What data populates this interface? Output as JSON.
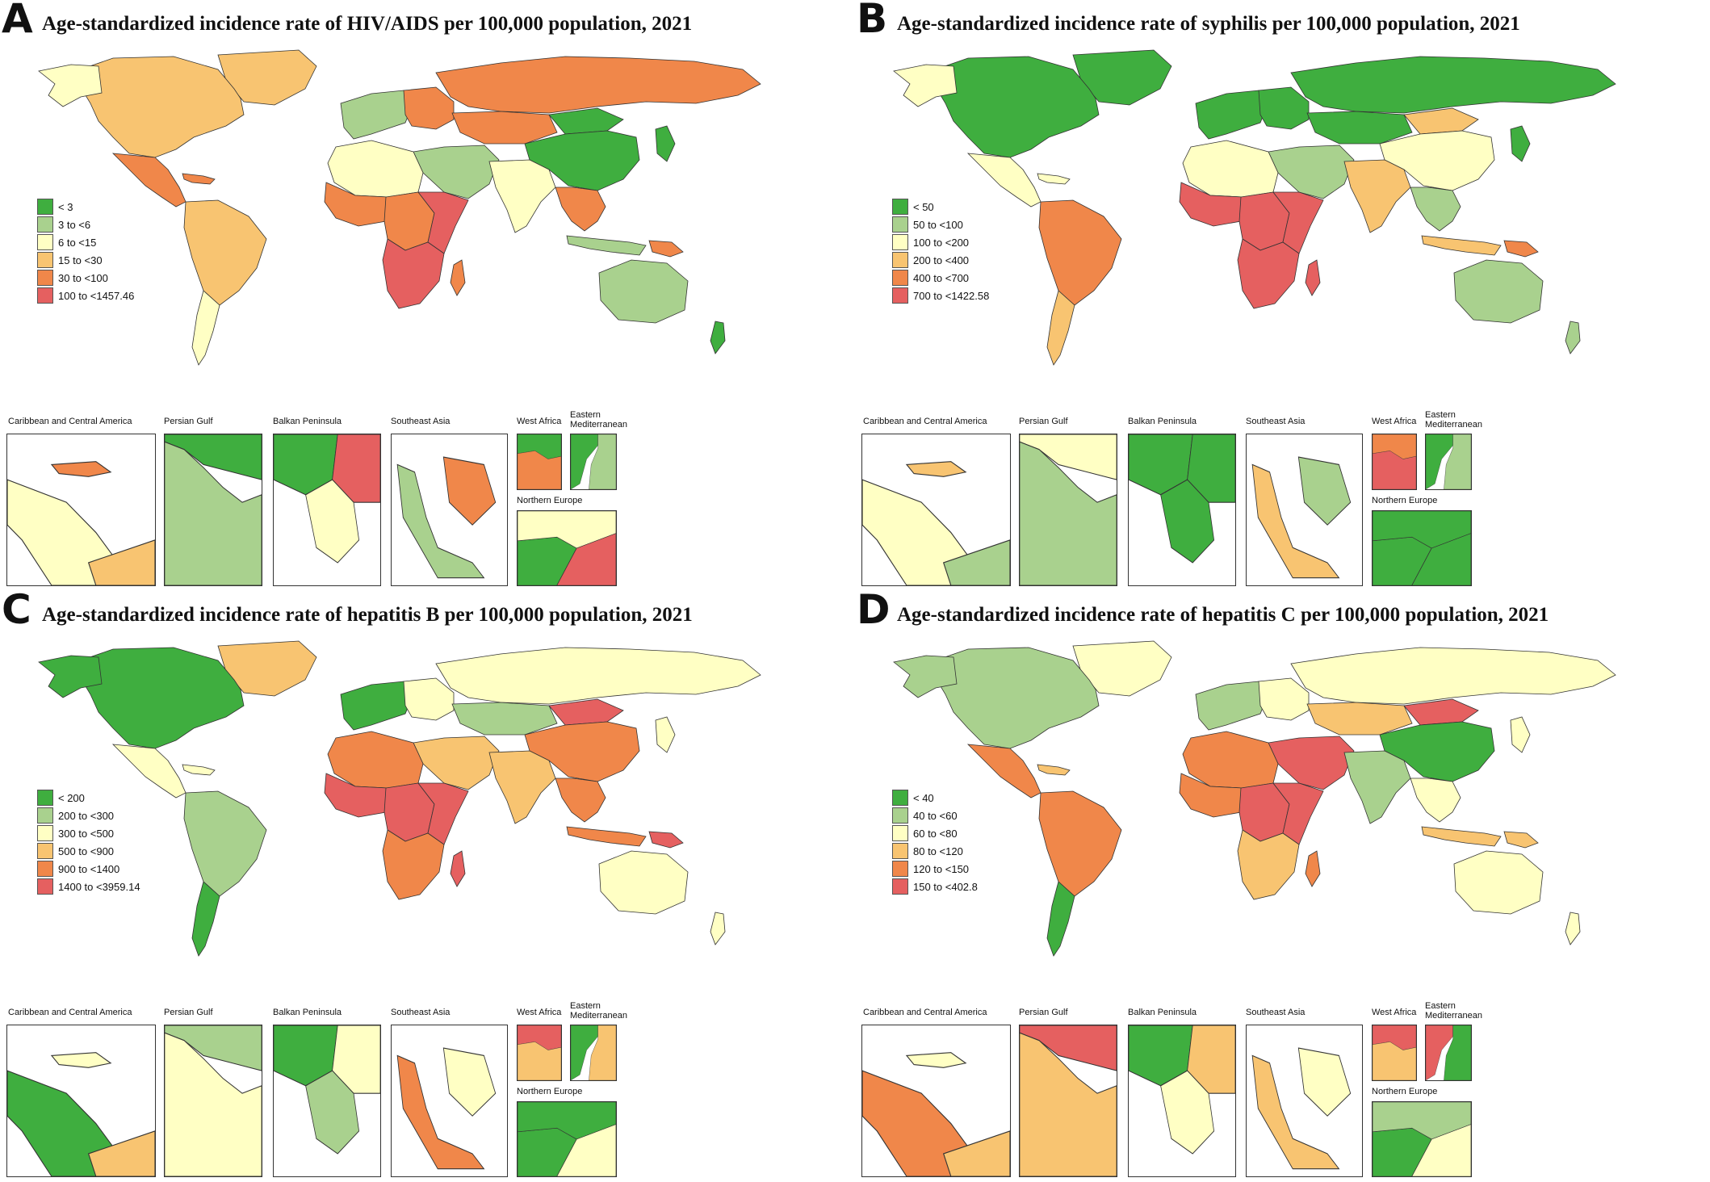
{
  "colors": {
    "c1": "#3fae3f",
    "c2": "#a9d18e",
    "c3": "#ffffc4",
    "c4": "#f8c471",
    "c5": "#f0874a",
    "c6": "#e56060",
    "border": "#333333"
  },
  "inset_labels": {
    "caribbean": "Caribbean and Central America",
    "persian_gulf": "Persian Gulf",
    "balkan": "Balkan Peninsula",
    "southeast_asia": "Southeast Asia",
    "west_africa": "West Africa",
    "eastern_med": "Eastern Mediterranean",
    "northern_europe": "Northern Europe"
  },
  "panels": [
    {
      "letter": "A",
      "title": "Age-standardized incidence rate of HIV/AIDS per 100,000 population, 2021",
      "legend": [
        "< 3",
        "3 to <6",
        "6 to <15",
        "15 to <30",
        "30 to <100",
        "100 to <1457.46"
      ],
      "regions": {
        "north_america": "c4",
        "greenland": "c4",
        "alaska": "c3",
        "central_america": "c5",
        "caribbean": "c5",
        "south_america": "c4",
        "southern_cone": "c3",
        "western_europe": "c2",
        "eastern_europe": "c5",
        "russia": "c5",
        "central_asia": "c5",
        "china": "c1",
        "mongolia": "c1",
        "japan": "c1",
        "middle_east": "c2",
        "north_africa": "c3",
        "west_africa": "c5",
        "central_africa": "c5",
        "east_africa": "c6",
        "southern_africa": "c6",
        "madagascar": "c5",
        "south_asia": "c3",
        "southeast_asia": "c5",
        "indonesia": "c2",
        "papua": "c5",
        "australia": "c2",
        "new_zealand": "c1"
      },
      "insets": {
        "caribbean": [
          "c3",
          "c5",
          "c4"
        ],
        "persian_gulf": [
          "c1",
          "c2"
        ],
        "balkan": [
          "c1",
          "c6",
          "c3"
        ],
        "southeast_asia": [
          "c2",
          "c5"
        ],
        "west_africa": [
          "c1",
          "c5"
        ],
        "eastern_med": [
          "c1",
          "c2"
        ],
        "northern_europe": [
          "c1",
          "c3",
          "c6"
        ]
      }
    },
    {
      "letter": "B",
      "title": "Age-standardized incidence rate of syphilis per 100,000 population, 2021",
      "legend": [
        "< 50",
        "50 to <100",
        "100 to <200",
        "200 to <400",
        "400 to <700",
        "700 to <1422.58"
      ],
      "regions": {
        "north_america": "c1",
        "greenland": "c1",
        "alaska": "c3",
        "central_america": "c3",
        "caribbean": "c3",
        "south_america": "c5",
        "southern_cone": "c4",
        "western_europe": "c1",
        "eastern_europe": "c1",
        "russia": "c1",
        "central_asia": "c1",
        "china": "c3",
        "mongolia": "c4",
        "japan": "c1",
        "middle_east": "c2",
        "north_africa": "c3",
        "west_africa": "c6",
        "central_africa": "c6",
        "east_africa": "c6",
        "southern_africa": "c6",
        "madagascar": "c6",
        "south_asia": "c4",
        "southeast_asia": "c2",
        "indonesia": "c4",
        "papua": "c5",
        "australia": "c2",
        "new_zealand": "c2"
      },
      "insets": {
        "caribbean": [
          "c3",
          "c4",
          "c2"
        ],
        "persian_gulf": [
          "c3",
          "c2"
        ],
        "balkan": [
          "c1",
          "c1",
          "c1"
        ],
        "southeast_asia": [
          "c4",
          "c2"
        ],
        "west_africa": [
          "c5",
          "c6"
        ],
        "eastern_med": [
          "c1",
          "c2"
        ],
        "northern_europe": [
          "c1",
          "c1",
          "c1"
        ]
      }
    },
    {
      "letter": "C",
      "title": "Age-standardized incidence rate of hepatitis B per 100,000 population, 2021",
      "legend": [
        "< 200",
        "200 to <300",
        "300 to <500",
        "500 to <900",
        "900 to <1400",
        "1400 to <3959.14"
      ],
      "regions": {
        "north_america": "c1",
        "greenland": "c4",
        "alaska": "c1",
        "central_america": "c3",
        "caribbean": "c3",
        "south_america": "c2",
        "southern_cone": "c1",
        "western_europe": "c1",
        "eastern_europe": "c3",
        "russia": "c3",
        "central_asia": "c2",
        "china": "c5",
        "mongolia": "c6",
        "japan": "c3",
        "middle_east": "c4",
        "north_africa": "c5",
        "west_africa": "c6",
        "central_africa": "c6",
        "east_africa": "c6",
        "southern_africa": "c5",
        "madagascar": "c6",
        "south_asia": "c4",
        "southeast_asia": "c5",
        "indonesia": "c5",
        "papua": "c6",
        "australia": "c3",
        "new_zealand": "c3"
      },
      "insets": {
        "caribbean": [
          "c1",
          "c3",
          "c4"
        ],
        "persian_gulf": [
          "c2",
          "c3"
        ],
        "balkan": [
          "c1",
          "c3",
          "c2"
        ],
        "southeast_asia": [
          "c5",
          "c3"
        ],
        "west_africa": [
          "c6",
          "c4"
        ],
        "eastern_med": [
          "c1",
          "c4"
        ],
        "northern_europe": [
          "c1",
          "c1",
          "c3"
        ]
      }
    },
    {
      "letter": "D",
      "title": "Age-standardized incidence rate of hepatitis C per 100,000 population, 2021",
      "legend": [
        "< 40",
        "40 to <60",
        "60 to <80",
        "80 to <120",
        "120 to <150",
        "150 to <402.8"
      ],
      "regions": {
        "north_america": "c2",
        "greenland": "c3",
        "alaska": "c2",
        "central_america": "c5",
        "caribbean": "c4",
        "south_america": "c5",
        "southern_cone": "c1",
        "western_europe": "c2",
        "eastern_europe": "c3",
        "russia": "c3",
        "central_asia": "c4",
        "china": "c1",
        "mongolia": "c6",
        "japan": "c3",
        "middle_east": "c6",
        "north_africa": "c5",
        "west_africa": "c5",
        "central_africa": "c6",
        "east_africa": "c6",
        "southern_africa": "c4",
        "madagascar": "c5",
        "south_asia": "c2",
        "southeast_asia": "c3",
        "indonesia": "c4",
        "papua": "c4",
        "australia": "c3",
        "new_zealand": "c3"
      },
      "insets": {
        "caribbean": [
          "c5",
          "c3",
          "c4"
        ],
        "persian_gulf": [
          "c6",
          "c4"
        ],
        "balkan": [
          "c1",
          "c4",
          "c3"
        ],
        "southeast_asia": [
          "c4",
          "c3"
        ],
        "west_africa": [
          "c6",
          "c4"
        ],
        "eastern_med": [
          "c6",
          "c1"
        ],
        "northern_europe": [
          "c1",
          "c2",
          "c3"
        ]
      }
    }
  ]
}
